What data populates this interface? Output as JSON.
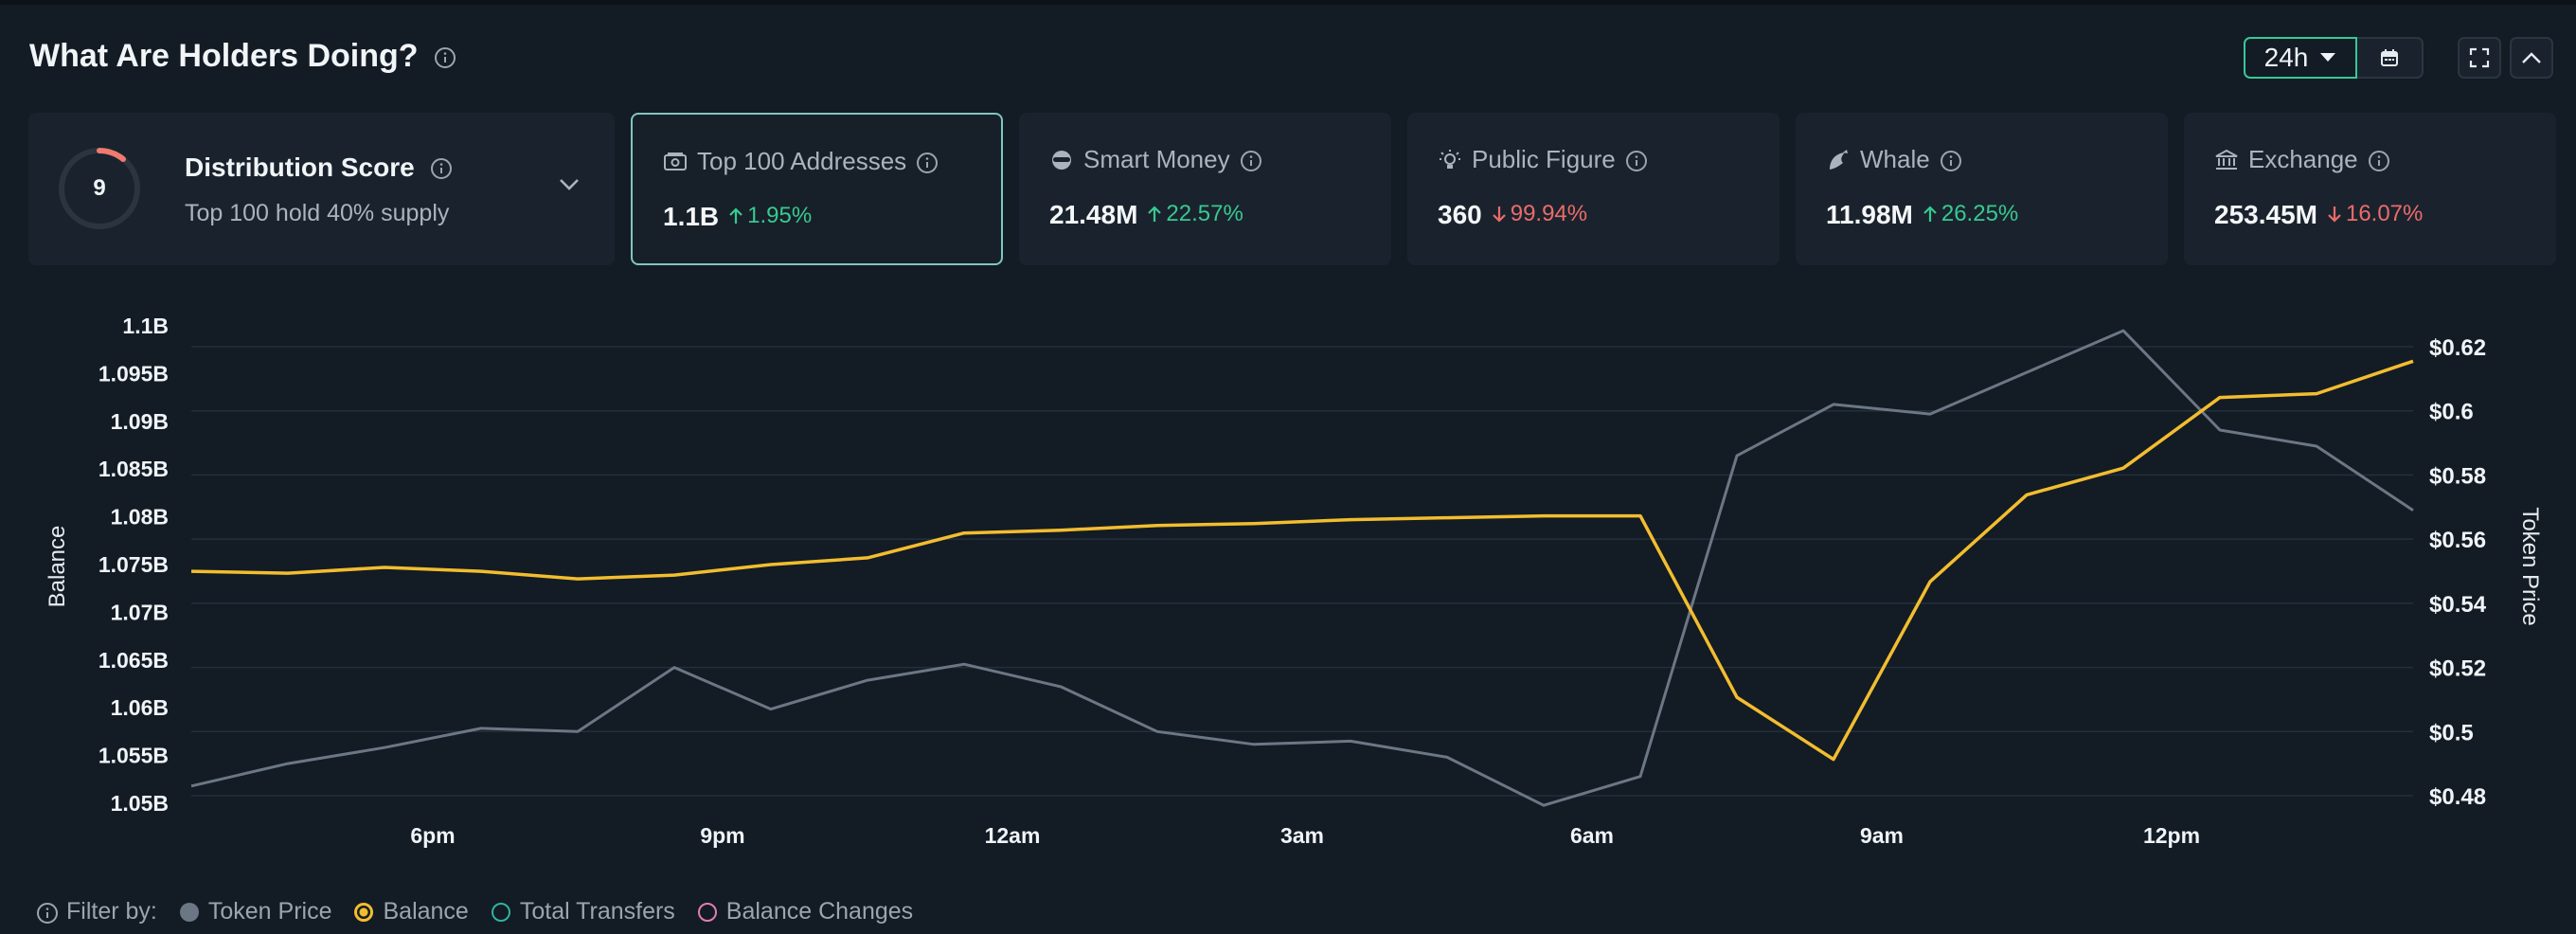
{
  "header": {
    "title": "What Are Holders Doing?",
    "range": "24h"
  },
  "distribution": {
    "score": "9",
    "title": "Distribution Score",
    "subtitle": "Top 100 hold 40% supply"
  },
  "cards": [
    {
      "label": "Top 100 Addresses",
      "value": "1.1B",
      "delta": "1.95%",
      "direction": "up",
      "icon": "wallet-icon",
      "active": true
    },
    {
      "label": "Smart Money",
      "value": "21.48M",
      "delta": "22.57%",
      "direction": "up",
      "icon": "mask-icon"
    },
    {
      "label": "Public Figure",
      "value": "360",
      "delta": "99.94%",
      "direction": "down",
      "icon": "lightbulb-icon"
    },
    {
      "label": "Whale",
      "value": "11.98M",
      "delta": "26.25%",
      "direction": "up",
      "icon": "whale-icon"
    },
    {
      "label": "Exchange",
      "value": "253.45M",
      "delta": "16.07%",
      "direction": "down",
      "icon": "bank-icon"
    }
  ],
  "colors": {
    "balance": "#f2bd2f",
    "token_price": "#6b7784",
    "accent": "#37c896",
    "up": "#38c990",
    "down": "#ec6b6b"
  },
  "legend": {
    "prefix": "Filter by:",
    "items": [
      {
        "label": "Token Price",
        "color": "#6b7784",
        "filled": true
      },
      {
        "label": "Balance",
        "color": "#f2bd2f",
        "filled": true,
        "selected": true
      },
      {
        "label": "Total Transfers",
        "color": "#2fb3a0",
        "filled": false
      },
      {
        "label": "Balance Changes",
        "color": "#e07fb5",
        "filled": false
      }
    ]
  },
  "chart_data": {
    "type": "line",
    "xlabel": "",
    "x_ticks": [
      "6pm",
      "9pm",
      "12am",
      "3am",
      "6am",
      "9am",
      "12pm"
    ],
    "y_left": {
      "label": "Balance",
      "ticks": [
        "1.1B",
        "1.095B",
        "1.09B",
        "1.085B",
        "1.08B",
        "1.075B",
        "1.07B",
        "1.065B",
        "1.06B",
        "1.055B",
        "1.05B"
      ],
      "range": [
        1.05,
        1.1
      ],
      "unit": "B"
    },
    "y_right": {
      "label": "Token Price",
      "ticks": [
        "$0.62",
        "$0.6",
        "$0.58",
        "$0.56",
        "$0.54",
        "$0.52",
        "$0.5",
        "$0.48"
      ],
      "range": [
        0.48,
        0.62
      ]
    },
    "x_hours": [
      3.5,
      4.5,
      5.5,
      6.5,
      7.5,
      8.5,
      9.5,
      10.5,
      11.5,
      12.5,
      13.5,
      14.5,
      15.5,
      16.5,
      17.5,
      18.5,
      19.5,
      20.5,
      21.5,
      22.5,
      23.5,
      24.5,
      25.5,
      26.5
    ],
    "series": [
      {
        "name": "Balance",
        "axis": "left",
        "values": [
          1.0743,
          1.0741,
          1.0747,
          1.0743,
          1.0735,
          1.0739,
          1.075,
          1.0757,
          1.0783,
          1.0786,
          1.0791,
          1.0793,
          1.0797,
          1.0799,
          1.0801,
          1.0801,
          1.0611,
          1.0546,
          1.0732,
          1.0823,
          1.0851,
          1.0925,
          1.0929,
          1.0963
        ]
      },
      {
        "name": "Token Price",
        "axis": "right",
        "values": [
          0.483,
          0.49,
          0.495,
          0.501,
          0.5,
          0.52,
          0.507,
          0.516,
          0.521,
          0.514,
          0.5,
          0.496,
          0.497,
          0.492,
          0.477,
          0.486,
          0.586,
          0.602,
          0.599,
          0.612,
          0.625,
          0.594,
          0.589,
          0.569
        ]
      }
    ],
    "grid": true
  }
}
